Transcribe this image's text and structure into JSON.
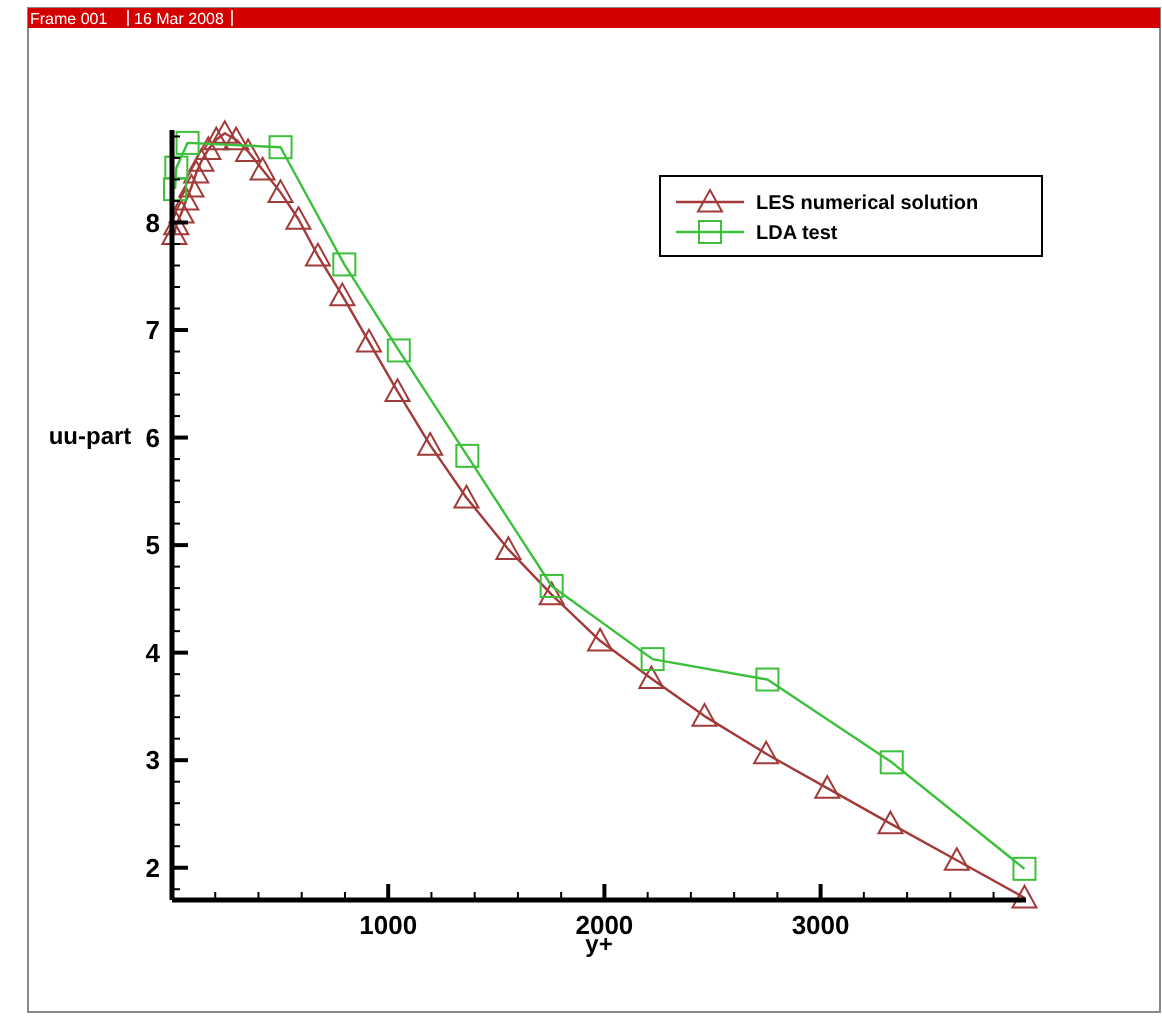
{
  "chart_data": {
    "type": "line",
    "xlabel": "y+",
    "ylabel": "uu-part",
    "annotations": [
      "Frame 001",
      "16 Mar 2008"
    ],
    "xlim": [
      0,
      3950
    ],
    "ylim": [
      1.7,
      8.86
    ],
    "xticks": [
      {
        "value": 200,
        "label": null
      },
      {
        "value": 400,
        "label": null
      },
      {
        "value": 600,
        "label": null
      },
      {
        "value": 800,
        "label": null
      },
      1000,
      {
        "value": 1200,
        "label": null
      },
      {
        "value": 1400,
        "label": null
      },
      {
        "value": 1600,
        "label": null
      },
      {
        "value": 1800,
        "label": null
      },
      2000,
      {
        "value": 2200,
        "label": null
      },
      {
        "value": 2400,
        "label": null
      },
      {
        "value": 2600,
        "label": null
      },
      {
        "value": 2800,
        "label": null
      },
      3000,
      {
        "value": 3200,
        "label": null
      },
      {
        "value": 3400,
        "label": null
      },
      {
        "value": 3600,
        "label": null
      },
      {
        "value": 3800,
        "label": null
      }
    ],
    "yticks": [
      {
        "value": 1.8,
        "label": null
      },
      2,
      {
        "value": 2.2,
        "label": null
      },
      {
        "value": 2.4,
        "label": null
      },
      {
        "value": 2.6,
        "label": null
      },
      {
        "value": 2.8,
        "label": null
      },
      3,
      {
        "value": 3.2,
        "label": null
      },
      {
        "value": 3.4,
        "label": null
      },
      {
        "value": 3.6,
        "label": null
      },
      {
        "value": 3.8,
        "label": null
      },
      4,
      {
        "value": 4.2,
        "label": null
      },
      {
        "value": 4.4,
        "label": null
      },
      {
        "value": 4.6,
        "label": null
      },
      {
        "value": 4.8,
        "label": null
      },
      5,
      {
        "value": 5.2,
        "label": null
      },
      {
        "value": 5.4,
        "label": null
      },
      {
        "value": 5.6,
        "label": null
      },
      {
        "value": 5.8,
        "label": null
      },
      6,
      {
        "value": 6.2,
        "label": null
      },
      {
        "value": 6.4,
        "label": null
      },
      {
        "value": 6.6,
        "label": null
      },
      {
        "value": 6.8,
        "label": null
      },
      7,
      {
        "value": 7.2,
        "label": null
      },
      {
        "value": 7.4,
        "label": null
      },
      {
        "value": 7.6,
        "label": null
      },
      {
        "value": 7.8,
        "label": null
      },
      8,
      {
        "value": 8.2,
        "label": null
      },
      {
        "value": 8.4,
        "label": null
      },
      {
        "value": 8.6,
        "label": null
      },
      {
        "value": 8.8,
        "label": null
      }
    ],
    "grid": false,
    "legend": "top right",
    "line_style": "solid",
    "series": [
      {
        "name": "LES numerical solution",
        "color": "#a33a3a",
        "marker": "triangle",
        "x": [
          11,
          20,
          44,
          66,
          90,
          112,
          136,
          168,
          205,
          244,
          297,
          352,
          419,
          502,
          585,
          675,
          788,
          911,
          1043,
          1194,
          1362,
          1556,
          1756,
          1980,
          2217,
          2463,
          2748,
          3031,
          3323,
          3630,
          3943
        ],
        "values": [
          7.89,
          7.98,
          8.09,
          8.21,
          8.33,
          8.46,
          8.57,
          8.68,
          8.77,
          8.83,
          8.77,
          8.66,
          8.49,
          8.28,
          8.03,
          7.69,
          7.32,
          6.89,
          6.43,
          5.93,
          5.44,
          4.96,
          4.54,
          4.11,
          3.76,
          3.41,
          3.06,
          2.74,
          2.41,
          2.07,
          1.72
        ]
      },
      {
        "name": "LDA test",
        "color": "#3cc03c",
        "marker": "square",
        "x": [
          14,
          20,
          72,
          502,
          797,
          1049,
          1366,
          1756,
          2223,
          2754,
          3329,
          3943
        ],
        "values": [
          8.31,
          8.51,
          8.74,
          8.7,
          7.61,
          6.81,
          5.83,
          4.62,
          3.94,
          3.75,
          2.98,
          1.99
        ]
      }
    ]
  }
}
